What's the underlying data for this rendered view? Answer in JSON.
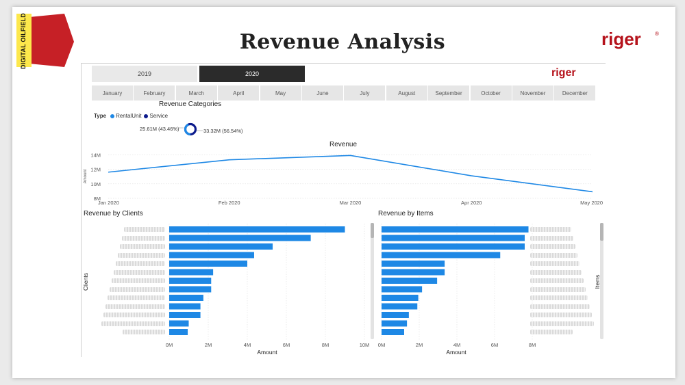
{
  "slide": {
    "title": "Revenue Analysis",
    "ribbon_text": "DIGITAL OILFIELD",
    "logo_text": "riger",
    "logo_registered": "®"
  },
  "colors": {
    "accent_blue": "#1e88e5",
    "service_navy": "#0d1b8c",
    "ribbon_red": "#c62026",
    "ribbon_yellow": "#fde84c",
    "logo_red": "#b5121b"
  },
  "filters": {
    "years": [
      {
        "label": "2019",
        "selected": false
      },
      {
        "label": "2020",
        "selected": true
      }
    ],
    "months": [
      "January",
      "February",
      "March",
      "April",
      "May",
      "June",
      "July",
      "August",
      "September",
      "October",
      "November",
      "December"
    ]
  },
  "revenue_categories": {
    "title": "Revenue Categories",
    "legend_title": "Type",
    "legend": [
      {
        "name": "RentalUnit",
        "color": "#1e88e5"
      },
      {
        "name": "Service",
        "color": "#0d1b8c"
      }
    ],
    "left_label": "25.61M (43.46%)",
    "right_label": "33.32M (56.54%)"
  },
  "chart_data": [
    {
      "type": "line",
      "title": "Revenue",
      "ylabel": "Amount",
      "xlabel": "",
      "x": [
        "Jan 2020",
        "Feb 2020",
        "Mar 2020",
        "Apr 2020",
        "May 2020"
      ],
      "series": [
        {
          "values": [
            11.6,
            13.3,
            13.9,
            11.1,
            8.9
          ]
        }
      ],
      "y_ticks": [
        "8M",
        "10M",
        "12M",
        "14M"
      ],
      "ylim": [
        8,
        14.4
      ],
      "grid": true
    },
    {
      "type": "bar",
      "orientation": "horizontal",
      "title": "Revenue by Clients",
      "xlabel": "Amount",
      "ylabel": "Clients",
      "values": [
        9.0,
        7.25,
        5.3,
        4.35,
        4.0,
        2.25,
        2.15,
        2.15,
        1.75,
        1.6,
        1.6,
        1.0,
        0.95
      ],
      "x_ticks": [
        "0M",
        "2M",
        "4M",
        "6M",
        "8M",
        "10M"
      ],
      "xlim": [
        0,
        10
      ],
      "grid": true
    },
    {
      "type": "bar",
      "orientation": "horizontal",
      "title": "Revenue by Items",
      "xlabel": "Amount",
      "ylabel": "Items",
      "values": [
        7.8,
        7.6,
        7.6,
        6.3,
        3.35,
        3.35,
        2.95,
        2.15,
        1.95,
        1.9,
        1.45,
        1.35,
        1.2
      ],
      "x_ticks": [
        "0M",
        "2M",
        "4M",
        "6M",
        "8M"
      ],
      "xlim": [
        0,
        10
      ],
      "grid": true
    }
  ]
}
